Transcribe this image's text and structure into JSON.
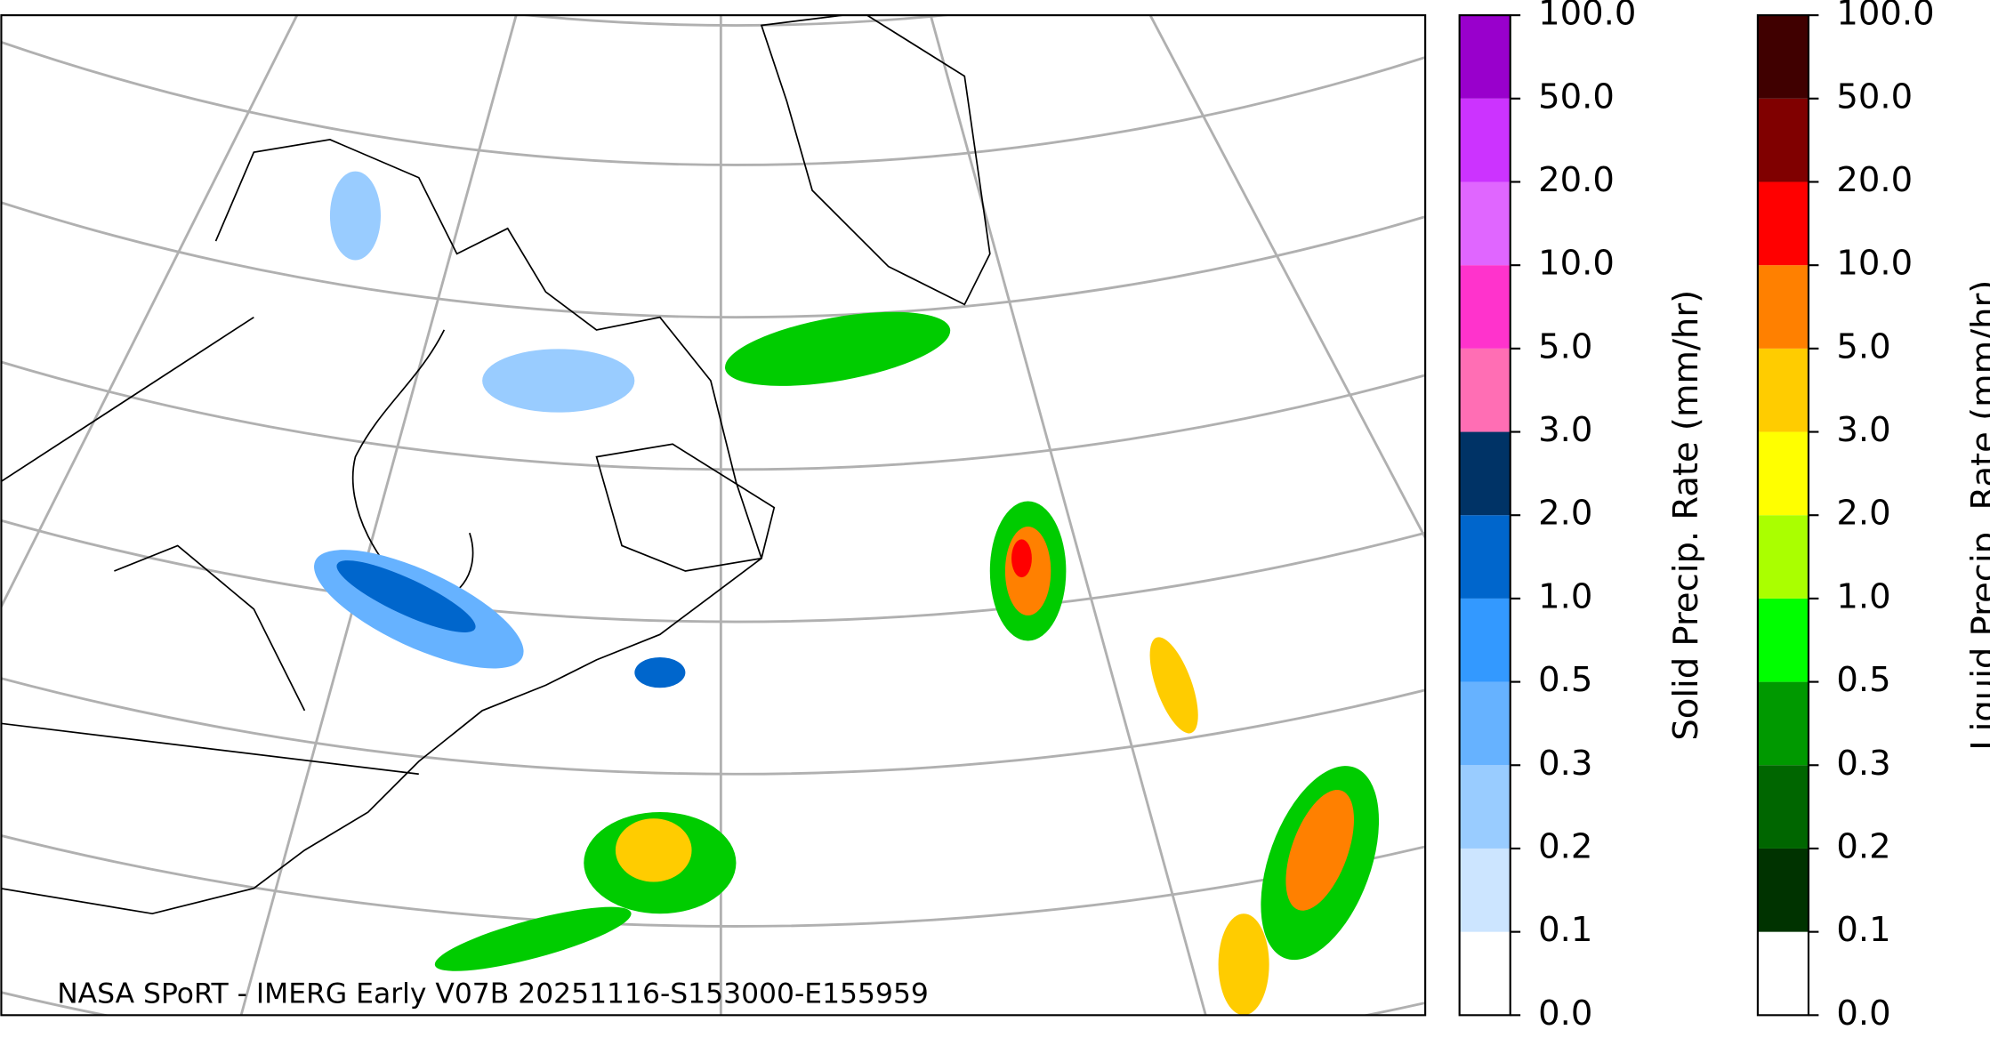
{
  "map": {
    "caption": "NASA SPoRT - IMERG Early V07B 20251116-S153000-E155959"
  },
  "colorbars": [
    {
      "label": "Solid Precip. Rate (mm/hr)",
      "ticks": [
        {
          "value": 0,
          "label": "0.0"
        },
        {
          "value": 0.1,
          "label": "0.1"
        },
        {
          "value": 0.2,
          "label": "0.2"
        },
        {
          "value": 0.3,
          "label": "0.3"
        },
        {
          "value": 0.5,
          "label": "0.5"
        },
        {
          "value": 1,
          "label": "1.0"
        },
        {
          "value": 2,
          "label": "2.0"
        },
        {
          "value": 3,
          "label": "3.0"
        },
        {
          "value": 5,
          "label": "5.0"
        },
        {
          "value": 10,
          "label": "10.0"
        },
        {
          "value": 20,
          "label": "20.0"
        },
        {
          "value": 50,
          "label": "50.0"
        },
        {
          "value": 100,
          "label": "100.0"
        }
      ],
      "colors": [
        "#ffffff",
        "#cce5ff",
        "#99ccff",
        "#66b2ff",
        "#3399ff",
        "#0066cc",
        "#003366",
        "#ff6eb4",
        "#ff33cc",
        "#e066ff",
        "#cc33ff",
        "#9900cc"
      ]
    },
    {
      "label": "Liquid Precip. Rate (mm/hr)",
      "ticks": [
        {
          "value": 0,
          "label": "0.0"
        },
        {
          "value": 0.1,
          "label": "0.1"
        },
        {
          "value": 0.2,
          "label": "0.2"
        },
        {
          "value": 0.3,
          "label": "0.3"
        },
        {
          "value": 0.5,
          "label": "0.5"
        },
        {
          "value": 1,
          "label": "1.0"
        },
        {
          "value": 2,
          "label": "2.0"
        },
        {
          "value": 3,
          "label": "3.0"
        },
        {
          "value": 5,
          "label": "5.0"
        },
        {
          "value": 10,
          "label": "10.0"
        },
        {
          "value": 20,
          "label": "20.0"
        },
        {
          "value": 50,
          "label": "50.0"
        },
        {
          "value": 100,
          "label": "100.0"
        }
      ],
      "colors": [
        "#ffffff",
        "#003300",
        "#006600",
        "#009900",
        "#00ff00",
        "#aaff00",
        "#ffff00",
        "#ffcc00",
        "#ff8000",
        "#ff0000",
        "#800000",
        "#400000"
      ]
    }
  ]
}
